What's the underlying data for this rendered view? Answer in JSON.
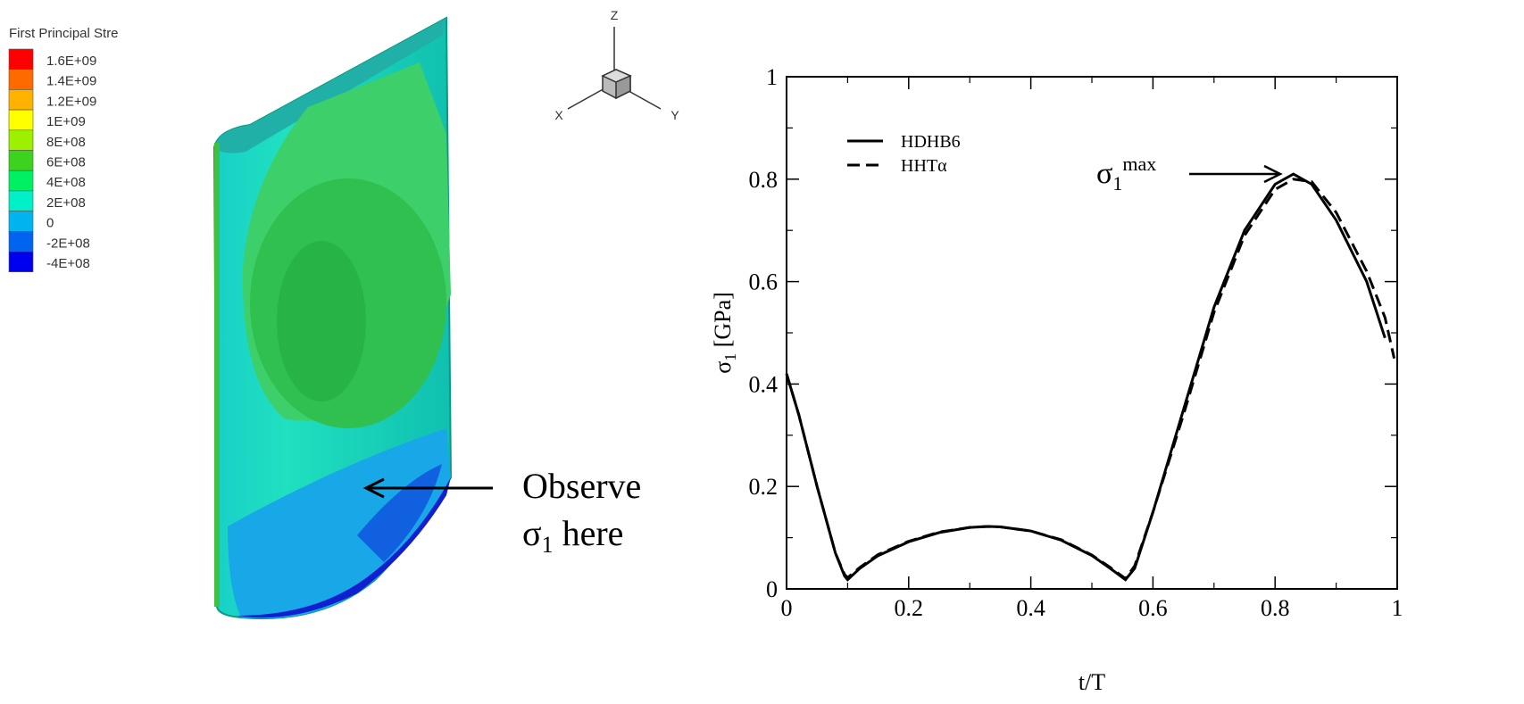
{
  "contour_legend": {
    "title": "First Principal Stre",
    "levels": [
      {
        "label": "1.6E+09",
        "color": "#ff0000"
      },
      {
        "label": "1.4E+09",
        "color": "#ff6a00"
      },
      {
        "label": "1.2E+09",
        "color": "#ffb300"
      },
      {
        "label": "1E+09",
        "color": "#ffff00"
      },
      {
        "label": "8E+08",
        "color": "#9cf000"
      },
      {
        "label": "6E+08",
        "color": "#3cd21e"
      },
      {
        "label": "4E+08",
        "color": "#00f064"
      },
      {
        "label": "2E+08",
        "color": "#00f0c8"
      },
      {
        "label": "0",
        "color": "#00b4f0"
      },
      {
        "label": "-2E+08",
        "color": "#0064f0"
      },
      {
        "label": "-4E+08",
        "color": "#0000f0"
      }
    ]
  },
  "triad": {
    "z": "Z",
    "x": "X",
    "y": "Y"
  },
  "annotation": {
    "line1": "Observe",
    "symbol": "σ",
    "sub": "1",
    "rest": " here"
  },
  "chart_data": {
    "type": "line",
    "x_label": "t/T",
    "y_label": {
      "symbol": "σ",
      "sub": "1",
      "unit": " [GPa]"
    },
    "peak_label": {
      "symbol": "σ",
      "sub": "1",
      "sup": "max"
    },
    "x": [
      0,
      0.02,
      0.05,
      0.08,
      0.095,
      0.1,
      0.12,
      0.15,
      0.2,
      0.25,
      0.3,
      0.33,
      0.35,
      0.4,
      0.45,
      0.5,
      0.53,
      0.555,
      0.57,
      0.6,
      0.65,
      0.7,
      0.75,
      0.8,
      0.83,
      0.86,
      0.9,
      0.95,
      0.98,
      0.995
    ],
    "series": [
      {
        "name": "HDHB6",
        "color": "#000000",
        "dash": "solid",
        "values": [
          0.42,
          0.34,
          0.2,
          0.07,
          0.025,
          0.018,
          0.04,
          0.065,
          0.092,
          0.11,
          0.12,
          0.122,
          0.121,
          0.113,
          0.095,
          0.065,
          0.04,
          0.018,
          0.04,
          0.15,
          0.35,
          0.55,
          0.7,
          0.79,
          0.81,
          0.79,
          0.72,
          0.6,
          0.49,
          null
        ]
      },
      {
        "name": "HHTα",
        "color": "#000000",
        "dash": "dashed",
        "values": [
          0.42,
          0.34,
          0.2,
          0.07,
          0.028,
          0.022,
          0.042,
          0.067,
          0.093,
          0.111,
          0.12,
          0.122,
          0.121,
          0.113,
          0.096,
          0.066,
          0.042,
          0.02,
          0.045,
          0.15,
          0.34,
          0.54,
          0.69,
          0.78,
          0.8,
          0.795,
          0.735,
          0.62,
          0.53,
          0.45
        ]
      }
    ],
    "xlim": [
      0,
      1
    ],
    "ylim": [
      0,
      1
    ],
    "xticks": [
      0,
      0.2,
      0.4,
      0.6,
      0.8,
      1
    ],
    "yticks": [
      0,
      0.2,
      0.4,
      0.6,
      0.8,
      1
    ],
    "legend": "upper left"
  }
}
